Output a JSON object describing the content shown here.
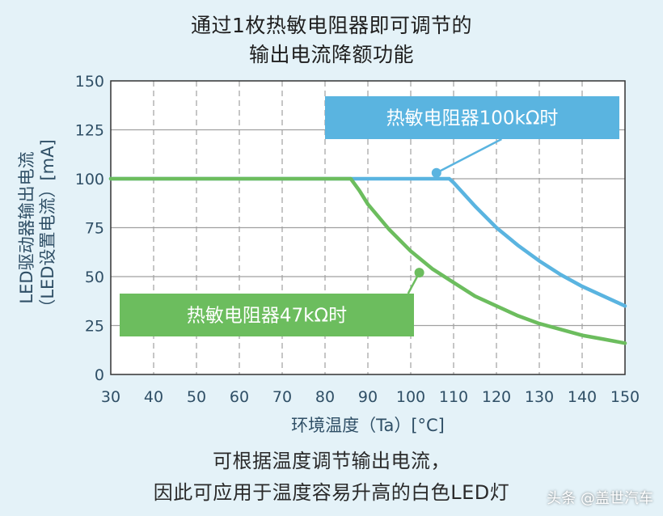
{
  "title_line1": "通过1枚热敏电阻器即可调节的",
  "title_line2": "输出电流降额功能",
  "caption_line1": "可根据温度调节输出电流，",
  "caption_line2": "因此可应用于温度容易升高的白色LED灯",
  "watermark": "头条 @盖世汽车",
  "colors": {
    "blue": "#5ab4e0",
    "green": "#6cbd5e",
    "axis_text": "#2f4f66",
    "grid": "#a0a0a0",
    "frame": "#333333",
    "background": "#e4f2f8"
  },
  "chart_data": {
    "type": "line",
    "xlabel": "环境温度（Ta）[°C]",
    "ylabel_line1": "LED驱动器输出电流",
    "ylabel_line2": "（LED设置电流）[mA]",
    "xlim": [
      30,
      150
    ],
    "ylim": [
      0,
      150
    ],
    "x_ticks": [
      30,
      40,
      50,
      60,
      70,
      80,
      90,
      100,
      110,
      120,
      130,
      140,
      150
    ],
    "y_ticks": [
      0,
      25,
      50,
      75,
      100,
      125,
      150
    ],
    "grid": true,
    "series": [
      {
        "name": "热敏电阻器100kΩ时",
        "color": "#5ab4e0",
        "points": [
          [
            30,
            100
          ],
          [
            86,
            100
          ],
          [
            100,
            100
          ],
          [
            109,
            100
          ],
          [
            110,
            98
          ],
          [
            115,
            86
          ],
          [
            120,
            75
          ],
          [
            125,
            66
          ],
          [
            130,
            58
          ],
          [
            135,
            51
          ],
          [
            140,
            45
          ],
          [
            145,
            40
          ],
          [
            150,
            35
          ]
        ]
      },
      {
        "name": "热敏电阻器47kΩ时",
        "color": "#6cbd5e",
        "points": [
          [
            30,
            100
          ],
          [
            86,
            100
          ],
          [
            88,
            94
          ],
          [
            90,
            87
          ],
          [
            95,
            74
          ],
          [
            100,
            63
          ],
          [
            105,
            54
          ],
          [
            110,
            47
          ],
          [
            115,
            40
          ],
          [
            120,
            35
          ],
          [
            125,
            30
          ],
          [
            130,
            26
          ],
          [
            135,
            23
          ],
          [
            140,
            20
          ],
          [
            145,
            18
          ],
          [
            150,
            16
          ]
        ]
      }
    ],
    "annotations": [
      {
        "label": "热敏电阻器100kΩ时",
        "series": 0,
        "point": [
          106,
          103
        ],
        "color": "#5ab4e0",
        "text_color": "#ffffff"
      },
      {
        "label": "热敏电阻器47kΩ时",
        "series": 1,
        "point": [
          102,
          52
        ],
        "color": "#6cbd5e",
        "text_color": "#ffffff"
      }
    ]
  }
}
